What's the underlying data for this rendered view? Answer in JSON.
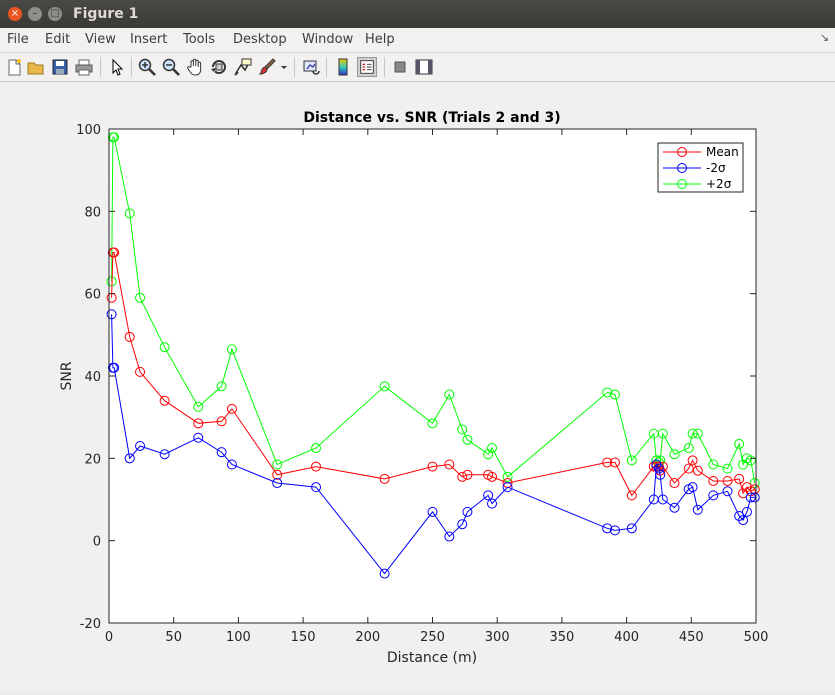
{
  "window": {
    "title": "Figure 1"
  },
  "menu": [
    "File",
    "Edit",
    "View",
    "Insert",
    "Tools",
    "Desktop",
    "Window",
    "Help"
  ],
  "toolbar_icons": [
    "new-figure-icon",
    "open-file-icon",
    "save-icon",
    "print-icon",
    "pointer-icon",
    "zoom-in-icon",
    "zoom-out-icon",
    "pan-icon",
    "rotate-3d-icon",
    "data-cursor-icon",
    "brush-icon",
    "brush-dropdown-icon",
    "link-plot-icon",
    "insert-colorbar-icon",
    "insert-legend-icon",
    "hide-plot-tools-icon",
    "show-plot-tools-icon"
  ],
  "chart_data": {
    "type": "line",
    "title": "Distance vs. SNR (Trials 2 and 3)",
    "xlabel": "Distance (m)",
    "ylabel": "SNR",
    "xlim": [
      0,
      500
    ],
    "ylim": [
      -20,
      100
    ],
    "xticks": [
      0,
      50,
      100,
      150,
      200,
      250,
      300,
      350,
      400,
      450,
      500
    ],
    "yticks": [
      -20,
      0,
      20,
      40,
      60,
      80,
      100
    ],
    "grid": false,
    "legend_position": "top-right",
    "x": [
      2,
      3,
      4,
      16,
      24,
      43,
      69,
      87,
      95,
      130,
      160,
      213,
      250,
      263,
      273,
      277,
      293,
      296,
      308,
      385,
      391,
      404,
      421,
      423,
      425,
      426,
      428,
      437,
      448,
      451,
      455,
      467,
      478,
      487,
      490,
      493,
      496,
      499
    ],
    "series": [
      {
        "name": "Mean",
        "color": "#ff0000",
        "values": [
          59,
          70,
          70,
          49.5,
          41,
          34,
          28.5,
          29,
          32,
          16,
          18,
          15,
          18,
          18.5,
          15.5,
          16,
          16,
          15.5,
          14,
          19,
          19,
          11,
          18,
          18,
          18,
          17,
          18,
          14,
          17.5,
          19.5,
          17,
          14.5,
          14.5,
          15,
          11.5,
          13,
          12,
          12.5
        ]
      },
      {
        "name": "-2σ",
        "color": "#0000ff",
        "values": [
          55,
          42,
          42,
          20,
          23,
          21,
          25,
          21.5,
          18.5,
          14,
          13,
          -8,
          7,
          1,
          4,
          7,
          11,
          9,
          13,
          3,
          2.5,
          3,
          10,
          18.5,
          17.5,
          16,
          10,
          8,
          12.5,
          13,
          7.5,
          11,
          12,
          6,
          5,
          7,
          10.5,
          10.5
        ]
      },
      {
        "name": "+2σ",
        "color": "#00ff00",
        "values": [
          63,
          98,
          98,
          79.5,
          59,
          47,
          32.5,
          37.5,
          46.5,
          18.5,
          22.5,
          37.5,
          28.5,
          35.5,
          27,
          24.5,
          21,
          22.5,
          15.5,
          36,
          35.5,
          19.5,
          26,
          19.5,
          19,
          19.5,
          26,
          21,
          22.5,
          26,
          26,
          18.5,
          17.5,
          23.5,
          18.5,
          20,
          19.5,
          14
        ]
      }
    ]
  }
}
